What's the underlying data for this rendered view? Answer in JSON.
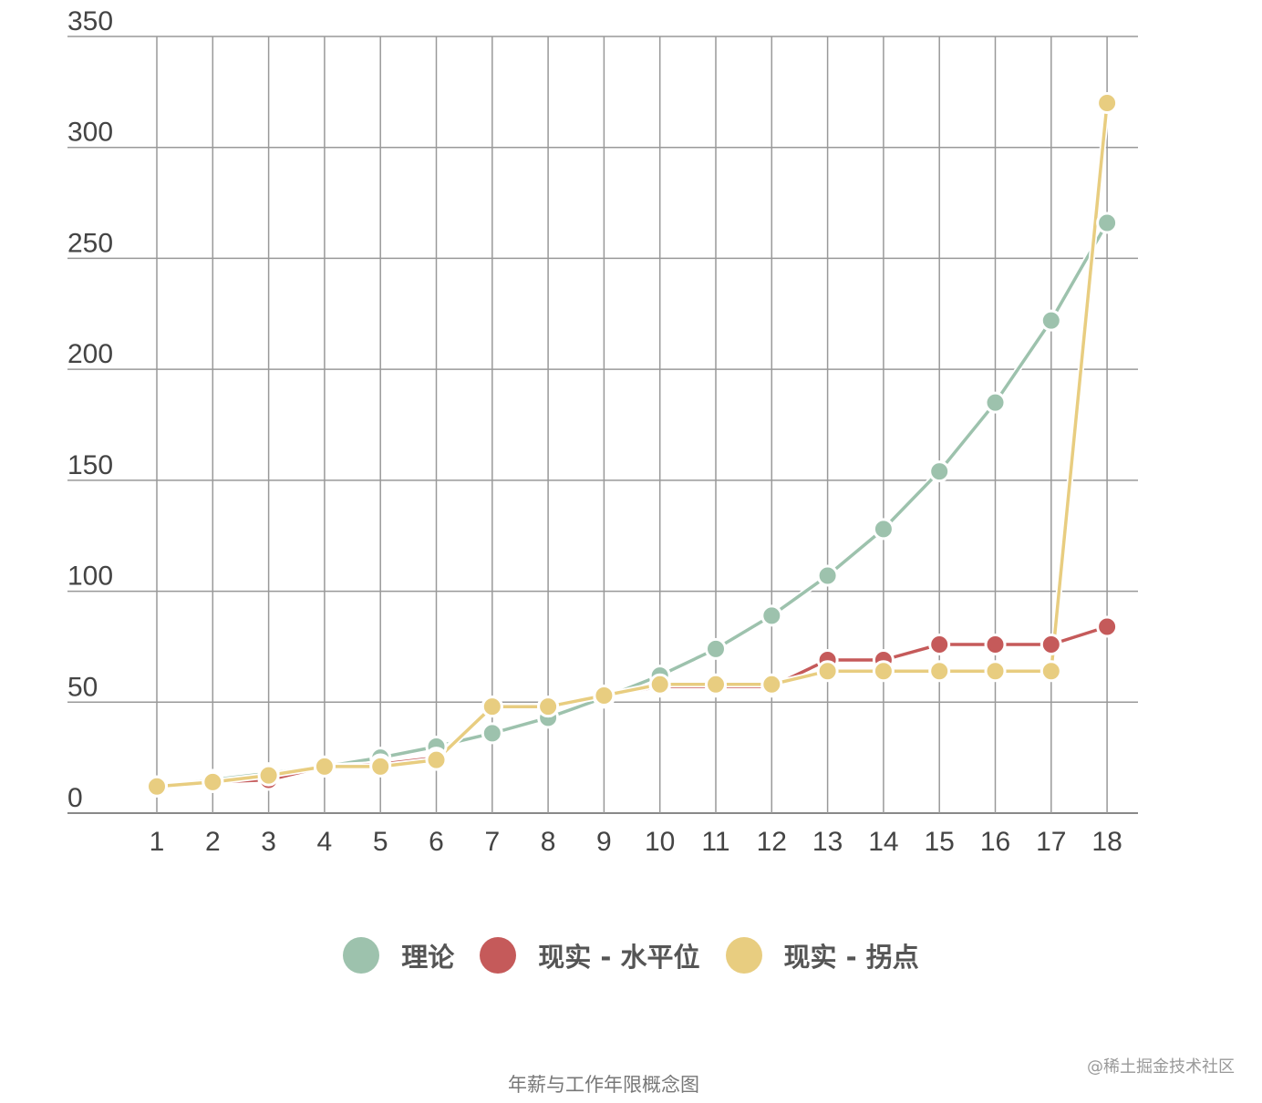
{
  "chart_data": {
    "type": "line",
    "title": "",
    "xlabel": "",
    "ylabel": "",
    "x": [
      1,
      2,
      3,
      4,
      5,
      6,
      7,
      8,
      9,
      10,
      11,
      12,
      13,
      14,
      15,
      16,
      17,
      18
    ],
    "ylim": [
      0,
      350
    ],
    "yticks": [
      0,
      50,
      100,
      150,
      200,
      250,
      300,
      350
    ],
    "grid": true,
    "legend_position": "bottom",
    "series": [
      {
        "name": "理论",
        "color": "#9dc2ad",
        "values": [
          12,
          15,
          18,
          21,
          25,
          30,
          36,
          43,
          52,
          62,
          74,
          89,
          107,
          128,
          154,
          185,
          222,
          266
        ]
      },
      {
        "name": "现实 - 水平位",
        "color": "#c55a5a",
        "values": [
          12,
          14,
          15,
          21,
          22,
          25,
          48,
          48,
          53,
          57,
          57,
          57,
          69,
          69,
          76,
          76,
          76,
          84
        ]
      },
      {
        "name": "现实 - 拐点",
        "color": "#e8cd80",
        "values": [
          12,
          14,
          17,
          21,
          21,
          24,
          48,
          48,
          53,
          58,
          58,
          58,
          64,
          64,
          64,
          64,
          64,
          320
        ]
      }
    ]
  },
  "caption": "年薪与工作年限概念图",
  "watermark": "@稀土掘金技术社区"
}
